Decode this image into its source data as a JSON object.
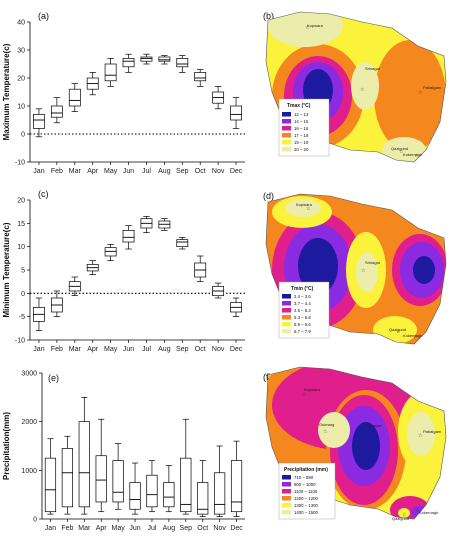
{
  "months": [
    "Jan",
    "Feb",
    "Mar",
    "Apr",
    "May",
    "Jun",
    "Jul",
    "Aug",
    "Sep",
    "Oct",
    "Nov",
    "Dec"
  ],
  "chart_data": [
    {
      "type": "box",
      "panel_label": "(a)",
      "ylabel": "Maximum Temperature(c)",
      "ylim": [
        -10,
        40
      ],
      "yticks": [
        -10,
        0,
        10,
        20,
        30,
        40
      ],
      "zero_line": true,
      "categories": [
        "Jan",
        "Feb",
        "Mar",
        "Apr",
        "May",
        "Jun",
        "Jul",
        "Aug",
        "Sep",
        "Oct",
        "Nov",
        "Dec"
      ],
      "boxes": [
        {
          "min": -1,
          "q1": 2,
          "median": 5,
          "q3": 7,
          "max": 9
        },
        {
          "min": 4,
          "q1": 6,
          "median": 7.5,
          "q3": 10,
          "max": 13
        },
        {
          "min": 8,
          "q1": 10,
          "median": 12,
          "q3": 16,
          "max": 18
        },
        {
          "min": 14,
          "q1": 16,
          "median": 18,
          "q3": 20,
          "max": 22
        },
        {
          "min": 17,
          "q1": 19,
          "median": 21,
          "q3": 25,
          "max": 27
        },
        {
          "min": 22,
          "q1": 24,
          "median": 26,
          "q3": 27,
          "max": 28.5
        },
        {
          "min": 25,
          "q1": 26,
          "median": 27,
          "q3": 27.5,
          "max": 28.5
        },
        {
          "min": 25,
          "q1": 26,
          "median": 26.5,
          "q3": 27.5,
          "max": 28
        },
        {
          "min": 22,
          "q1": 24,
          "median": 25,
          "q3": 27,
          "max": 28
        },
        {
          "min": 17,
          "q1": 19,
          "median": 20,
          "q3": 22,
          "max": 23
        },
        {
          "min": 9,
          "q1": 11,
          "median": 13,
          "q3": 15,
          "max": 17
        },
        {
          "min": 2,
          "q1": 5,
          "median": 7,
          "q3": 10,
          "max": 13
        }
      ]
    },
    {
      "type": "box",
      "panel_label": "(c)",
      "ylabel": "Minimum Temperature(c)",
      "ylim": [
        -10,
        20
      ],
      "yticks": [
        -10,
        -5,
        0,
        5,
        10,
        15,
        20
      ],
      "zero_line": true,
      "categories": [
        "Jan",
        "Feb",
        "Mar",
        "Apr",
        "May",
        "Jun",
        "Jul",
        "Aug",
        "Sep",
        "Oct",
        "Nov",
        "Dec"
      ],
      "boxes": [
        {
          "min": -8,
          "q1": -6,
          "median": -4.5,
          "q3": -3,
          "max": -1
        },
        {
          "min": -5,
          "q1": -4,
          "median": -2.5,
          "q3": -1,
          "max": 0.5
        },
        {
          "min": -0.5,
          "q1": 0.5,
          "median": 1.5,
          "q3": 2.5,
          "max": 3.5
        },
        {
          "min": 4,
          "q1": 4.8,
          "median": 5.5,
          "q3": 6.2,
          "max": 7
        },
        {
          "min": 7,
          "q1": 8,
          "median": 9,
          "q3": 9.8,
          "max": 10.5
        },
        {
          "min": 9.5,
          "q1": 11,
          "median": 12,
          "q3": 13.5,
          "max": 14.5
        },
        {
          "min": 13,
          "q1": 14,
          "median": 15,
          "q3": 16,
          "max": 16.5
        },
        {
          "min": 13.5,
          "q1": 14,
          "median": 14.8,
          "q3": 15.5,
          "max": 16
        },
        {
          "min": 9.5,
          "q1": 10,
          "median": 11,
          "q3": 11.5,
          "max": 12
        },
        {
          "min": 2.5,
          "q1": 3.5,
          "median": 5,
          "q3": 6.5,
          "max": 8
        },
        {
          "min": -1,
          "q1": -0.5,
          "median": 0.5,
          "q3": 1.5,
          "max": 2.2
        },
        {
          "min": -5,
          "q1": -4,
          "median": -3,
          "q3": -2,
          "max": -1
        }
      ]
    },
    {
      "type": "box",
      "panel_label": "(e)",
      "ylabel": "Precipitation(mm)",
      "ylim": [
        0,
        3000
      ],
      "yticks": [
        0,
        1000,
        2000,
        3000
      ],
      "zero_line": false,
      "categories": [
        "Jan",
        "Feb",
        "Mar",
        "Apr",
        "May",
        "Jun",
        "Jul",
        "Aug",
        "Sep",
        "Oct",
        "Nov",
        "Dec"
      ],
      "boxes": [
        {
          "min": 100,
          "q1": 150,
          "median": 600,
          "q3": 1250,
          "max": 1650
        },
        {
          "min": 100,
          "q1": 250,
          "median": 950,
          "q3": 1450,
          "max": 1700
        },
        {
          "min": 100,
          "q1": 250,
          "median": 950,
          "q3": 2000,
          "max": 2500
        },
        {
          "min": 150,
          "q1": 350,
          "median": 800,
          "q3": 1300,
          "max": 2050
        },
        {
          "min": 200,
          "q1": 350,
          "median": 550,
          "q3": 1200,
          "max": 1550
        },
        {
          "min": 100,
          "q1": 200,
          "median": 400,
          "q3": 750,
          "max": 1150
        },
        {
          "min": 150,
          "q1": 250,
          "median": 500,
          "q3": 900,
          "max": 1200
        },
        {
          "min": 150,
          "q1": 250,
          "median": 450,
          "q3": 750,
          "max": 1100
        },
        {
          "min": 100,
          "q1": 150,
          "median": 300,
          "q3": 1250,
          "max": 2050
        },
        {
          "min": 50,
          "q1": 100,
          "median": 200,
          "q3": 750,
          "max": 1200
        },
        {
          "min": 50,
          "q1": 100,
          "median": 300,
          "q3": 950,
          "max": 1500
        },
        {
          "min": 50,
          "q1": 150,
          "median": 350,
          "q3": 1200,
          "max": 1600
        }
      ]
    }
  ],
  "maps": [
    {
      "panel_label": "(b)",
      "legend_title": "Tmax (°C)",
      "legend": [
        {
          "label": "12 – 13",
          "color": "#1e1aa0"
        },
        {
          "label": "14 – 15",
          "color": "#8a2be2"
        },
        {
          "label": "16 – 16",
          "color": "#e01e8c"
        },
        {
          "label": "17 – 18",
          "color": "#f5871f"
        },
        {
          "label": "19 – 19",
          "color": "#fbf23b"
        },
        {
          "label": "20 – 20",
          "color": "#ecedaa"
        }
      ],
      "places": [
        "Kupwara",
        "Srinagar",
        "Pahalgam",
        "Qazigund",
        "Kokernagh"
      ]
    },
    {
      "panel_label": "(d)",
      "legend_title": "Tmin (°C)",
      "legend": [
        {
          "label": "2.4 – 3.6",
          "color": "#1e1aa0"
        },
        {
          "label": "3.7 – 4.4",
          "color": "#8a2be2"
        },
        {
          "label": "4.5 – 5.2",
          "color": "#e01e8c"
        },
        {
          "label": "5.3 – 5.8",
          "color": "#f5871f"
        },
        {
          "label": "5.9 – 6.6",
          "color": "#fbf23b"
        },
        {
          "label": "6.7 – 7.9",
          "color": "#ecedaa"
        }
      ],
      "places": [
        "Kupwara",
        "Srinagar",
        "Qazigund",
        "Kokernagh"
      ]
    },
    {
      "panel_label": "(f)",
      "legend_title": "Precipitation (mm)",
      "legend": [
        {
          "label": "710 – 890",
          "color": "#1e1aa0"
        },
        {
          "label": "900 – 1000",
          "color": "#8a2be2"
        },
        {
          "label": "1100 – 1100",
          "color": "#e01e8c"
        },
        {
          "label": "1200 – 1200",
          "color": "#f5871f"
        },
        {
          "label": "1300 – 1300",
          "color": "#fbf23b"
        },
        {
          "label": "1400 – 1500",
          "color": "#ecedaa"
        }
      ],
      "places": [
        "Kupwara",
        "Gulmarg",
        "Srinagar",
        "Pahalgam",
        "Qazigund",
        "Kokernagh"
      ]
    }
  ]
}
